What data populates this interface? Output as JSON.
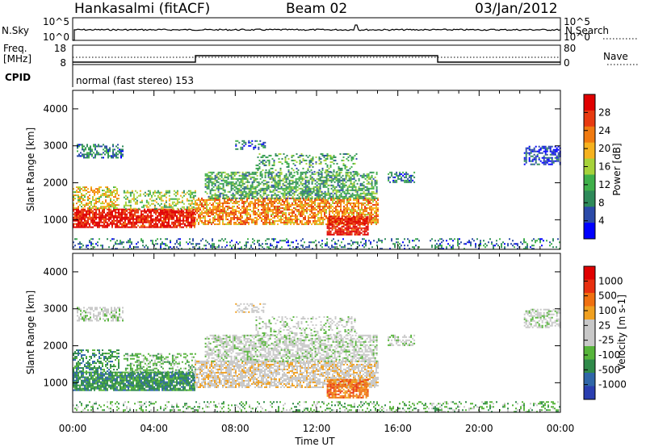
{
  "header": {
    "station": "Hankasalmi (fitACF)",
    "beam": "Beam 02",
    "date": "03/Jan/2012"
  },
  "noise_panel": {
    "left_label": "N.Sky",
    "right_label": "N.Search",
    "left_ticks": [
      "10^5",
      "10^0"
    ],
    "right_ticks": [
      "10^5",
      "10^0"
    ]
  },
  "freq_panel": {
    "left_label_1": "Freq.",
    "left_label_2": "[MHz]",
    "right_label": "Nave",
    "left_ticks": [
      "18",
      "8"
    ],
    "right_ticks": [
      "80",
      "0"
    ]
  },
  "cpid": {
    "label": "CPID",
    "mode": "normal (fast stereo) 153"
  },
  "colors": {
    "power_scale": [
      "#0000ff",
      "#2b4aa8",
      "#2e8a5a",
      "#3fb04a",
      "#a6d23a",
      "#f6b21e",
      "#f07a10",
      "#e83a10",
      "#e00000"
    ],
    "velocity_scale": [
      "#2a3eb0",
      "#2f66a8",
      "#2f8a4a",
      "#56b43a",
      "#c8c8c8",
      "#c8c8c8",
      "#f0a020",
      "#f07010",
      "#e83010",
      "#e00000"
    ]
  },
  "chart_data": [
    {
      "type": "heatmap",
      "name": "power",
      "ylabel": "Slant Range [km]",
      "colorbar_label": "Power [dB]",
      "colorbar_ticks": [
        "28",
        "24",
        "20",
        "16",
        "12",
        "8",
        "4"
      ],
      "y_ticks": [
        "4000",
        "3000",
        "2000",
        "1000"
      ],
      "ylim": [
        200,
        4500
      ],
      "xlim_hours": [
        0,
        24
      ]
    },
    {
      "type": "heatmap",
      "name": "velocity",
      "ylabel": "Slant Range [km]",
      "xlabel": "Time UT",
      "colorbar_label": "Velocity [m s-1]",
      "colorbar_ticks": [
        "1000",
        "500",
        "100",
        "25",
        "-25",
        "-100",
        "-500",
        "-1000"
      ],
      "y_ticks": [
        "4000",
        "3000",
        "2000",
        "1000"
      ],
      "x_ticks": [
        "00:00",
        "04:00",
        "08:00",
        "12:00",
        "16:00",
        "20:00",
        "00:00"
      ],
      "ylim": [
        200,
        4500
      ],
      "xlim_hours": [
        0,
        24
      ]
    }
  ]
}
